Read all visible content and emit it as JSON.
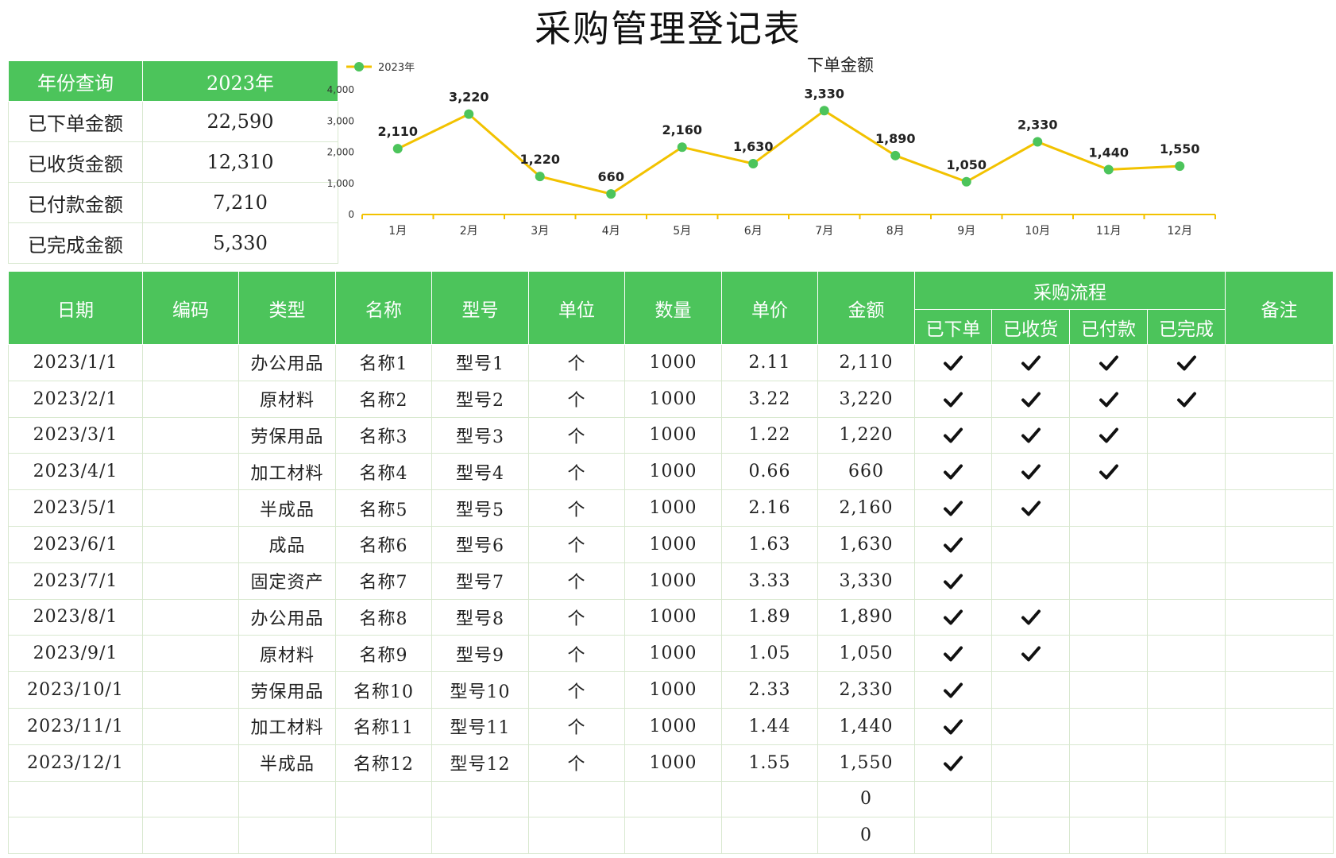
{
  "title": "采购管理登记表",
  "summary": {
    "header": {
      "label": "年份查询",
      "value": "2023年"
    },
    "rows": [
      {
        "label": "已下单金额",
        "value": "22,590"
      },
      {
        "label": "已收货金额",
        "value": "12,310"
      },
      {
        "label": "已付款金额",
        "value": "7,210"
      },
      {
        "label": "已完成金额",
        "value": "5,330"
      }
    ]
  },
  "chart_data": {
    "type": "line",
    "title": "下单金额",
    "legend": "top-left",
    "categories": [
      "1月",
      "2月",
      "3月",
      "4月",
      "5月",
      "6月",
      "7月",
      "8月",
      "9月",
      "10月",
      "11月",
      "12月"
    ],
    "series": [
      {
        "name": "2023年",
        "values": [
          2110,
          3220,
          1220,
          660,
          2160,
          1630,
          3330,
          1890,
          1050,
          2330,
          1440,
          1550
        ]
      }
    ],
    "data_labels": [
      "2,110",
      "3,220",
      "1,220",
      "660",
      "2,160",
      "1,630",
      "3,330",
      "1,890",
      "1,050",
      "2,330",
      "1,440",
      "1,550"
    ],
    "yticks": [
      "0",
      "1,000",
      "2,000",
      "3,000",
      "4,000"
    ],
    "ylim": [
      0,
      4000
    ],
    "grid": false,
    "colors": {
      "line": "#f2c200",
      "marker": "#4cc45b"
    }
  },
  "table": {
    "headers": {
      "date": "日期",
      "code": "编码",
      "type": "类型",
      "name": "名称",
      "model": "型号",
      "unit": "单位",
      "qty": "数量",
      "price": "单价",
      "amount": "金额",
      "process": "采购流程",
      "ordered": "已下单",
      "received": "已收货",
      "paid": "已付款",
      "completed": "已完成",
      "remark": "备注"
    },
    "rows": [
      {
        "date": "2023/1/1",
        "code": "",
        "type": "办公用品",
        "name": "名称1",
        "model": "型号1",
        "unit": "个",
        "qty": "1000",
        "price": "2.11",
        "amount": "2,110",
        "ordered": true,
        "received": true,
        "paid": true,
        "completed": true,
        "remark": ""
      },
      {
        "date": "2023/2/1",
        "code": "",
        "type": "原材料",
        "name": "名称2",
        "model": "型号2",
        "unit": "个",
        "qty": "1000",
        "price": "3.22",
        "amount": "3,220",
        "ordered": true,
        "received": true,
        "paid": true,
        "completed": true,
        "remark": ""
      },
      {
        "date": "2023/3/1",
        "code": "",
        "type": "劳保用品",
        "name": "名称3",
        "model": "型号3",
        "unit": "个",
        "qty": "1000",
        "price": "1.22",
        "amount": "1,220",
        "ordered": true,
        "received": true,
        "paid": true,
        "completed": false,
        "remark": ""
      },
      {
        "date": "2023/4/1",
        "code": "",
        "type": "加工材料",
        "name": "名称4",
        "model": "型号4",
        "unit": "个",
        "qty": "1000",
        "price": "0.66",
        "amount": "660",
        "ordered": true,
        "received": true,
        "paid": true,
        "completed": false,
        "remark": ""
      },
      {
        "date": "2023/5/1",
        "code": "",
        "type": "半成品",
        "name": "名称5",
        "model": "型号5",
        "unit": "个",
        "qty": "1000",
        "price": "2.16",
        "amount": "2,160",
        "ordered": true,
        "received": true,
        "paid": false,
        "completed": false,
        "remark": ""
      },
      {
        "date": "2023/6/1",
        "code": "",
        "type": "成品",
        "name": "名称6",
        "model": "型号6",
        "unit": "个",
        "qty": "1000",
        "price": "1.63",
        "amount": "1,630",
        "ordered": true,
        "received": false,
        "paid": false,
        "completed": false,
        "remark": ""
      },
      {
        "date": "2023/7/1",
        "code": "",
        "type": "固定资产",
        "name": "名称7",
        "model": "型号7",
        "unit": "个",
        "qty": "1000",
        "price": "3.33",
        "amount": "3,330",
        "ordered": true,
        "received": false,
        "paid": false,
        "completed": false,
        "remark": ""
      },
      {
        "date": "2023/8/1",
        "code": "",
        "type": "办公用品",
        "name": "名称8",
        "model": "型号8",
        "unit": "个",
        "qty": "1000",
        "price": "1.89",
        "amount": "1,890",
        "ordered": true,
        "received": true,
        "paid": false,
        "completed": false,
        "remark": ""
      },
      {
        "date": "2023/9/1",
        "code": "",
        "type": "原材料",
        "name": "名称9",
        "model": "型号9",
        "unit": "个",
        "qty": "1000",
        "price": "1.05",
        "amount": "1,050",
        "ordered": true,
        "received": true,
        "paid": false,
        "completed": false,
        "remark": ""
      },
      {
        "date": "2023/10/1",
        "code": "",
        "type": "劳保用品",
        "name": "名称10",
        "model": "型号10",
        "unit": "个",
        "qty": "1000",
        "price": "2.33",
        "amount": "2,330",
        "ordered": true,
        "received": false,
        "paid": false,
        "completed": false,
        "remark": ""
      },
      {
        "date": "2023/11/1",
        "code": "",
        "type": "加工材料",
        "name": "名称11",
        "model": "型号11",
        "unit": "个",
        "qty": "1000",
        "price": "1.44",
        "amount": "1,440",
        "ordered": true,
        "received": false,
        "paid": false,
        "completed": false,
        "remark": ""
      },
      {
        "date": "2023/12/1",
        "code": "",
        "type": "半成品",
        "name": "名称12",
        "model": "型号12",
        "unit": "个",
        "qty": "1000",
        "price": "1.55",
        "amount": "1,550",
        "ordered": true,
        "received": false,
        "paid": false,
        "completed": false,
        "remark": ""
      },
      {
        "date": "",
        "code": "",
        "type": "",
        "name": "",
        "model": "",
        "unit": "",
        "qty": "",
        "price": "",
        "amount": "0",
        "ordered": false,
        "received": false,
        "paid": false,
        "completed": false,
        "remark": ""
      },
      {
        "date": "",
        "code": "",
        "type": "",
        "name": "",
        "model": "",
        "unit": "",
        "qty": "",
        "price": "",
        "amount": "0",
        "ordered": false,
        "received": false,
        "paid": false,
        "completed": false,
        "remark": ""
      }
    ]
  }
}
